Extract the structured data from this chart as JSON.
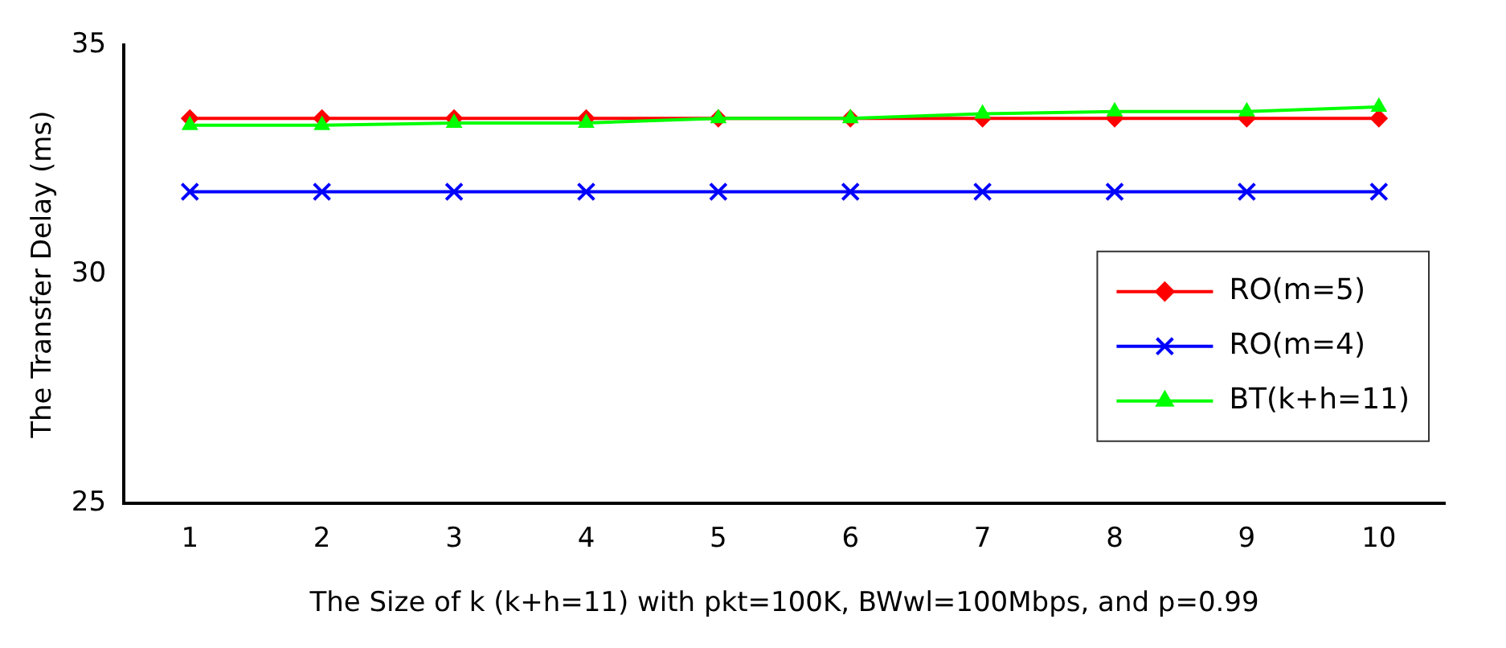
{
  "chart_data": {
    "type": "line",
    "xlabel": "The Size of k (k+h=11) with pkt=100K, BWwl=100Mbps, and p=0.99",
    "ylabel": "The Transfer Delay (ms)",
    "categories": [
      "1",
      "2",
      "3",
      "4",
      "5",
      "6",
      "7",
      "8",
      "9",
      "10"
    ],
    "series": [
      {
        "name": "RO(m=5)",
        "color": "#ff0000",
        "marker": "diamond",
        "values": [
          33.4,
          33.4,
          33.4,
          33.4,
          33.4,
          33.4,
          33.4,
          33.4,
          33.4,
          33.4
        ]
      },
      {
        "name": "RO(m=4)",
        "color": "#0000ff",
        "marker": "cross",
        "values": [
          31.8,
          31.8,
          31.8,
          31.8,
          31.8,
          31.8,
          31.8,
          31.8,
          31.8,
          31.8
        ]
      },
      {
        "name": "BT(k+h=11)",
        "color": "#00ff00",
        "marker": "triangle",
        "values": [
          33.25,
          33.25,
          33.3,
          33.3,
          33.4,
          33.4,
          33.5,
          33.55,
          33.55,
          33.65
        ]
      }
    ],
    "ylim": [
      25,
      35
    ],
    "yticks": [
      25,
      30,
      35
    ],
    "grid": false,
    "legend": "right"
  }
}
